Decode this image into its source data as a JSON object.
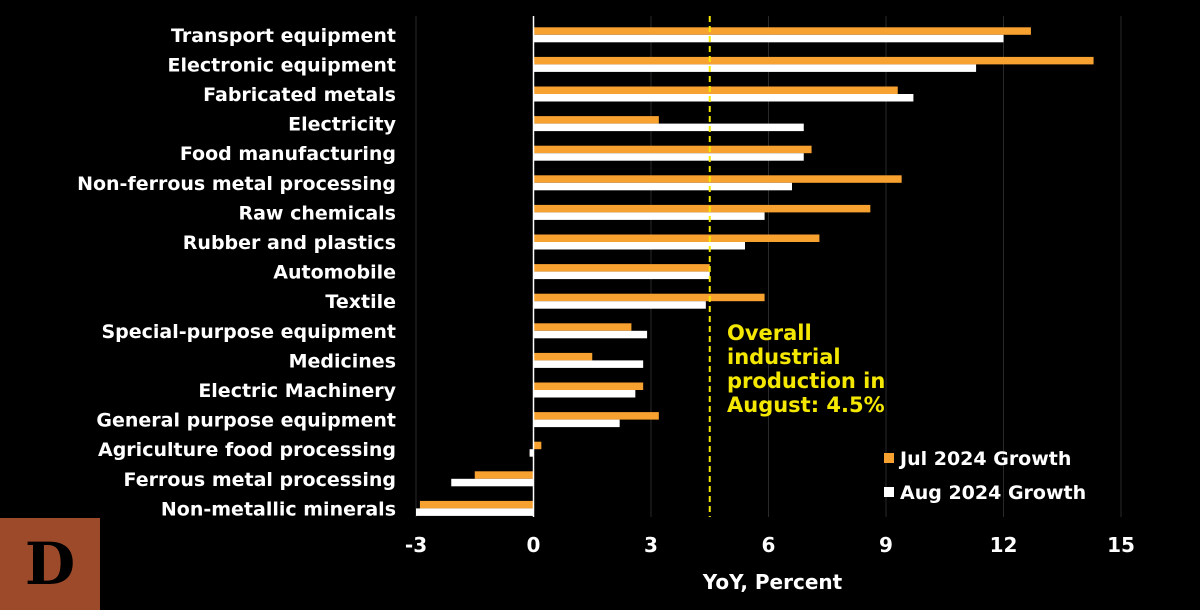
{
  "chart_data": {
    "type": "bar",
    "orientation": "horizontal",
    "categories": [
      "Transport equipment",
      "Electronic equipment",
      "Fabricated metals",
      "Electricity",
      "Food manufacturing",
      "Non-ferrous metal processing",
      "Raw chemicals",
      "Rubber and plastics",
      "Automobile",
      "Textile",
      "Special-purpose equipment",
      "Medicines",
      "Electric Machinery",
      "General purpose equipment",
      "Agriculture food processing",
      "Ferrous metal processing",
      "Non-metallic minerals"
    ],
    "series": [
      {
        "name": "Jul 2024 Growth",
        "color": "#f7a130",
        "values": [
          12.7,
          14.3,
          9.3,
          3.2,
          7.1,
          9.4,
          8.6,
          7.3,
          4.5,
          5.9,
          2.5,
          1.5,
          2.8,
          3.2,
          0.2,
          -1.5,
          -2.9
        ]
      },
      {
        "name": "Aug 2024 Growth",
        "color": "#ffffff",
        "values": [
          12.0,
          11.3,
          9.7,
          6.9,
          6.9,
          6.6,
          5.9,
          5.4,
          4.5,
          4.4,
          2.9,
          2.8,
          2.6,
          2.2,
          -0.1,
          -2.1,
          -3.0
        ]
      }
    ],
    "xlabel": "YoY, Percent",
    "xlim": [
      -3,
      15
    ],
    "xticks": [
      -3,
      0,
      3,
      6,
      9,
      12,
      15
    ],
    "grid": "vertical",
    "reference_line": {
      "value": 4.5,
      "color": "#f5e800",
      "style": "dashed",
      "annotation": [
        "Overall",
        "industrial",
        "production in",
        "August: 4.5%"
      ]
    },
    "legend_position": "bottom-right"
  },
  "logo": {
    "letter": "D",
    "color": "#9c4a2a"
  }
}
